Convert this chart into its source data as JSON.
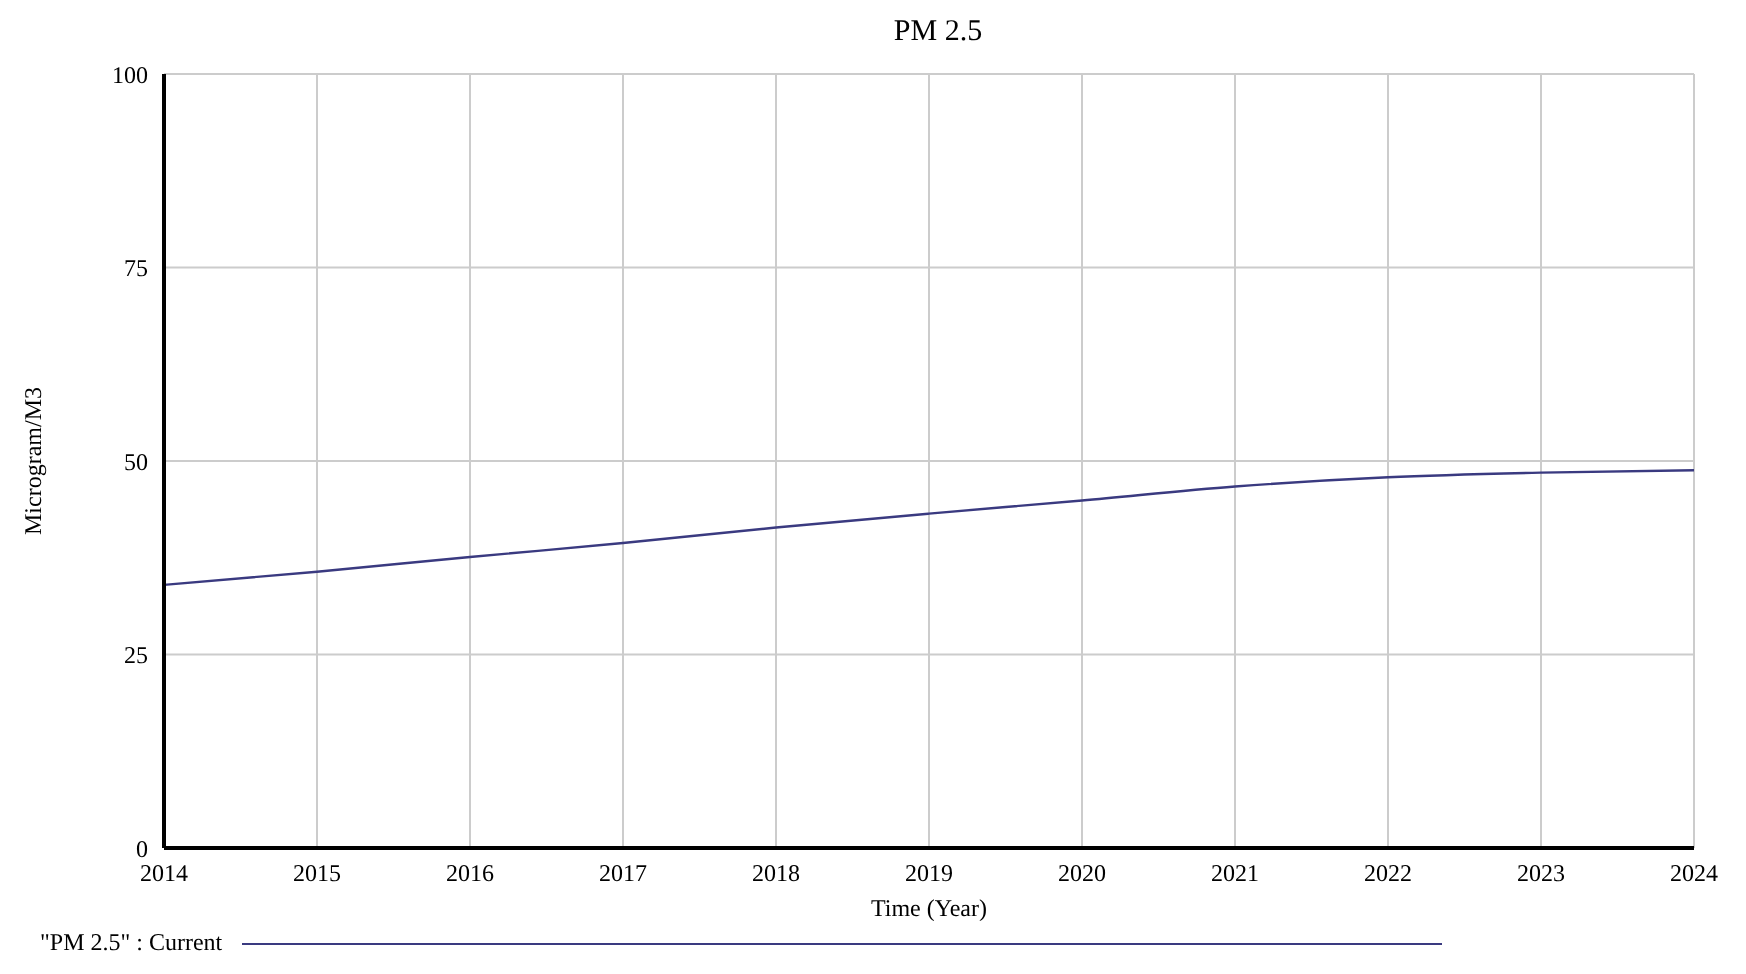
{
  "chart_data": {
    "type": "line",
    "title": "PM 2.5",
    "xlabel": "Time (Year)",
    "ylabel": "Microgram/M3",
    "x": [
      2014,
      2015,
      2016,
      2017,
      2018,
      2019,
      2020,
      2021,
      2022,
      2023,
      2024
    ],
    "series": [
      {
        "name": "\"PM 2.5\" : Current",
        "color": "#3a3a80",
        "values": [
          34.0,
          35.7,
          37.6,
          39.4,
          41.4,
          43.2,
          44.9,
          46.7,
          47.9,
          48.5,
          48.8
        ]
      }
    ],
    "xlim": [
      2014,
      2024
    ],
    "xticks": [
      2014,
      2015,
      2016,
      2017,
      2018,
      2019,
      2020,
      2021,
      2022,
      2023,
      2024
    ],
    "ylim": [
      0,
      100
    ],
    "yticks": [
      0,
      25,
      50,
      75,
      100
    ],
    "grid": true,
    "legend": "bottom",
    "marker": "none",
    "line_style": "solid"
  }
}
